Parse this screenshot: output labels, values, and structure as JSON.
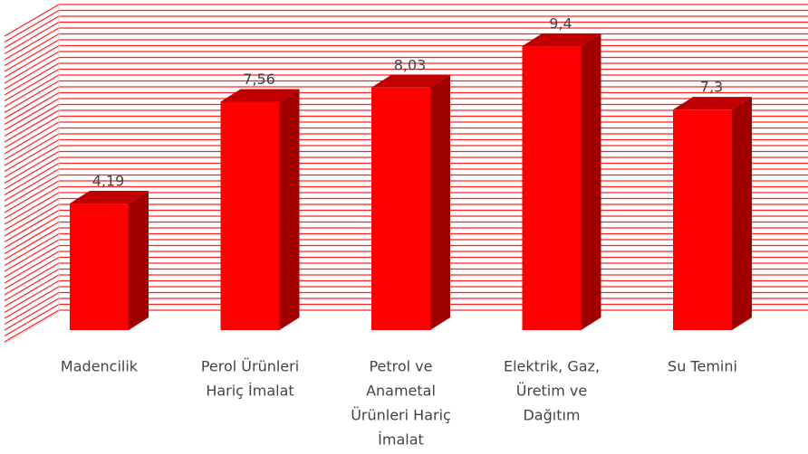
{
  "chart_data": {
    "type": "bar3d",
    "categories": [
      [
        "Madencilik"
      ],
      [
        "Perol Ürünleri",
        "Hariç İmalat"
      ],
      [
        "Petrol ve",
        "Anametal",
        "Ürünleri Hariç",
        "İmalat"
      ],
      [
        "Elektrik, Gaz,",
        "Üretim ve",
        "Dağıtım"
      ],
      [
        "Su Temini"
      ]
    ],
    "values": [
      4.19,
      7.56,
      8.03,
      9.4,
      7.3
    ],
    "value_labels": [
      "4,19",
      "7,56",
      "8,03",
      "9,4",
      "7,3"
    ],
    "color": "#ff0000",
    "ylim": [
      0,
      10
    ]
  }
}
